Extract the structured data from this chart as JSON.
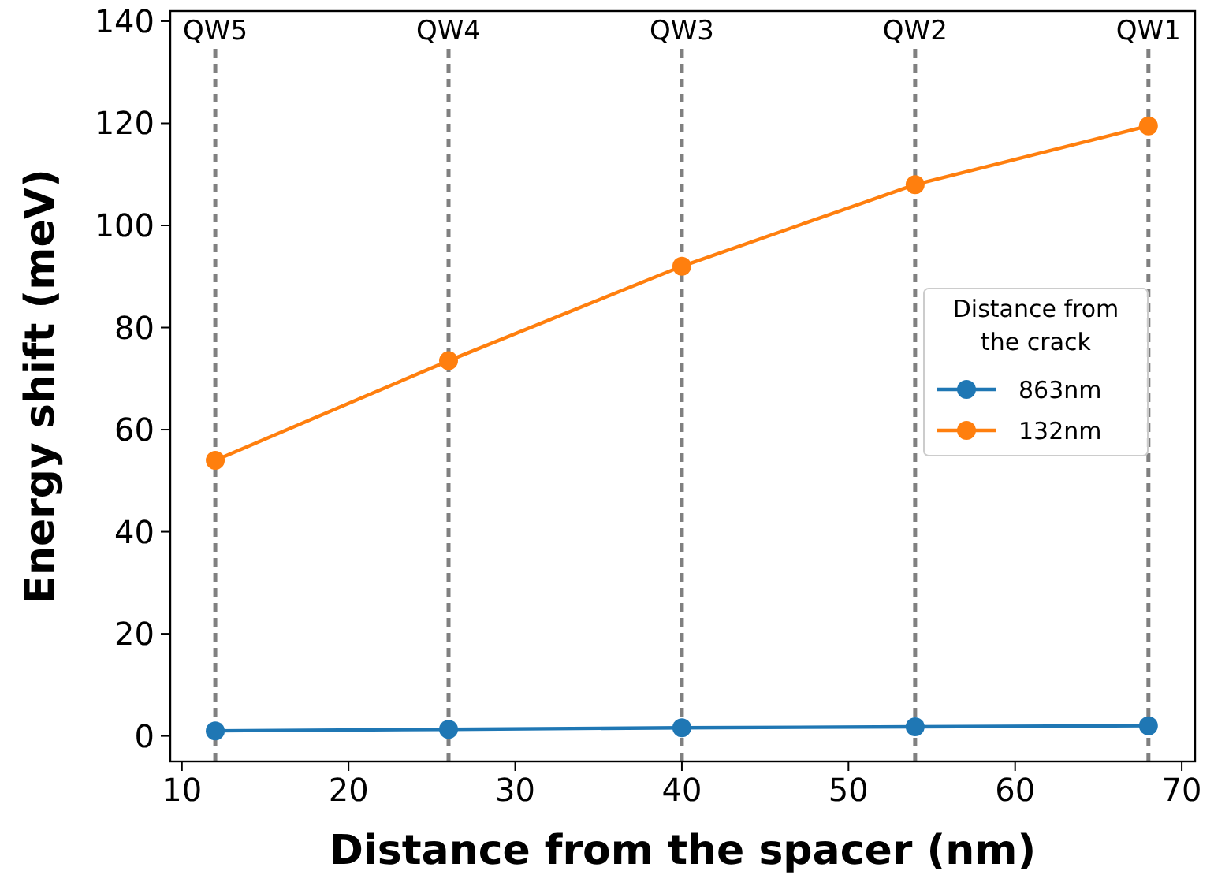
{
  "chart_data": {
    "type": "line",
    "xlabel": "Distance from the spacer (nm)",
    "ylabel": "Energy shift (meV)",
    "legend_title": "Distance from\nthe crack",
    "x": [
      12,
      26,
      40,
      54,
      68
    ],
    "series": [
      {
        "name": "863nm",
        "color": "#1f77b4",
        "values": [
          1,
          1.3,
          1.6,
          1.8,
          2.0
        ]
      },
      {
        "name": "132nm",
        "color": "#ff7f0e",
        "values": [
          54,
          73.5,
          92,
          108,
          119.5
        ]
      }
    ],
    "xlim": [
      9.3,
      70.8
    ],
    "ylim": [
      -5,
      142
    ],
    "xticks": [
      10,
      20,
      30,
      40,
      50,
      60,
      70
    ],
    "yticks": [
      0,
      20,
      40,
      60,
      80,
      100,
      120,
      140
    ],
    "ref_lines": [
      {
        "axis": "x",
        "value": 12,
        "label": "QW5",
        "color": "#808080",
        "line_style": "dashed"
      },
      {
        "axis": "x",
        "value": 26,
        "label": "QW4",
        "color": "#808080",
        "line_style": "dashed"
      },
      {
        "axis": "x",
        "value": 40,
        "label": "QW3",
        "color": "#808080",
        "line_style": "dashed"
      },
      {
        "axis": "x",
        "value": 54,
        "label": "QW2",
        "color": "#808080",
        "line_style": "dashed"
      },
      {
        "axis": "x",
        "value": 68,
        "label": "QW1",
        "color": "#808080",
        "line_style": "dashed"
      }
    ],
    "grid": false,
    "legend": "right",
    "marker": "circle",
    "line_style": "solid"
  }
}
